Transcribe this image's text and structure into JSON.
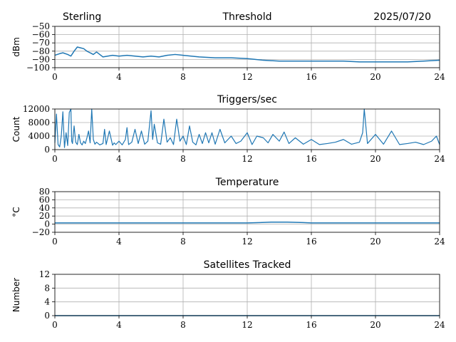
{
  "header": {
    "station": "Sterling",
    "date": "2025/07/20"
  },
  "colors": {
    "line": "#1f77b4"
  },
  "chart_data": [
    {
      "type": "line",
      "title": "Threshold",
      "ylabel": "dBm",
      "xlim": [
        0,
        24
      ],
      "ylim": [
        -100,
        -50
      ],
      "xticks": [
        0,
        4,
        8,
        12,
        16,
        20,
        24
      ],
      "yticks": [
        -100,
        -90,
        -80,
        -70,
        -60,
        -50
      ],
      "ytick_labels": [
        "−100",
        "−90",
        "−80",
        "−70",
        "−60",
        "−50"
      ],
      "grid": true,
      "x": [
        0,
        0.3,
        0.5,
        0.8,
        1.0,
        1.2,
        1.4,
        1.6,
        1.8,
        2.0,
        2.2,
        2.4,
        2.6,
        2.8,
        3.0,
        3.3,
        3.6,
        4.0,
        4.5,
        5.0,
        5.5,
        6.0,
        6.5,
        7.0,
        7.5,
        8.0,
        8.5,
        9.0,
        10.0,
        11.0,
        12.0,
        12.5,
        13.0,
        14.0,
        15.0,
        16.0,
        17.0,
        18.0,
        19.0,
        20.0,
        21.0,
        22.0,
        23.0,
        24.0
      ],
      "y": [
        -85,
        -83,
        -82,
        -84,
        -86,
        -80,
        -75,
        -76,
        -77,
        -80,
        -82,
        -84,
        -81,
        -84,
        -87,
        -86,
        -85,
        -86,
        -85,
        -86,
        -87,
        -86,
        -87,
        -85,
        -84,
        -85,
        -86,
        -87,
        -88,
        -88,
        -89,
        -90,
        -91,
        -92,
        -92,
        -92,
        -92,
        -92,
        -93,
        -93,
        -93,
        -93,
        -92,
        -91
      ]
    },
    {
      "type": "line",
      "title": "Triggers/sec",
      "ylabel": "Count",
      "xlim": [
        0,
        24
      ],
      "ylim": [
        0,
        12000
      ],
      "xticks": [
        0,
        4,
        8,
        12,
        16,
        20,
        24
      ],
      "yticks": [
        0,
        4000,
        8000,
        12000
      ],
      "ytick_labels": [
        "0",
        "4000",
        "8000",
        "12000"
      ],
      "grid": true,
      "x": [
        0,
        0.1,
        0.2,
        0.3,
        0.4,
        0.5,
        0.6,
        0.7,
        0.8,
        0.9,
        1.0,
        1.05,
        1.1,
        1.2,
        1.3,
        1.4,
        1.5,
        1.6,
        1.7,
        1.8,
        1.9,
        2.0,
        2.1,
        2.2,
        2.3,
        2.4,
        2.5,
        2.6,
        2.8,
        3.0,
        3.1,
        3.2,
        3.4,
        3.6,
        3.7,
        3.8,
        4.0,
        4.2,
        4.4,
        4.5,
        4.6,
        4.8,
        5.0,
        5.2,
        5.4,
        5.6,
        5.8,
        6.0,
        6.1,
        6.2,
        6.4,
        6.6,
        6.8,
        7.0,
        7.2,
        7.4,
        7.6,
        7.8,
        8.0,
        8.2,
        8.4,
        8.6,
        8.8,
        9.0,
        9.2,
        9.4,
        9.6,
        9.8,
        10.0,
        10.3,
        10.6,
        11.0,
        11.3,
        11.6,
        12.0,
        12.3,
        12.6,
        13.0,
        13.3,
        13.6,
        14.0,
        14.3,
        14.6,
        15.0,
        15.5,
        16.0,
        16.5,
        17.0,
        17.5,
        18.0,
        18.5,
        19.0,
        19.2,
        19.3,
        19.5,
        20.0,
        20.5,
        21.0,
        21.5,
        22.0,
        22.5,
        23.0,
        23.5,
        23.8,
        24.0
      ],
      "y": [
        2000,
        10500,
        1500,
        800,
        4000,
        11200,
        600,
        5000,
        1200,
        11000,
        12000,
        2500,
        1800,
        7000,
        2200,
        1500,
        4500,
        2000,
        1400,
        2500,
        1800,
        3500,
        5500,
        2000,
        12000,
        3000,
        1600,
        2200,
        1400,
        1800,
        6000,
        1500,
        5500,
        1300,
        2000,
        1500,
        2500,
        1400,
        3000,
        6500,
        1500,
        2200,
        6000,
        1800,
        5500,
        1600,
        2500,
        11500,
        3000,
        7500,
        2000,
        1600,
        9000,
        2200,
        3500,
        1500,
        9000,
        2500,
        4000,
        1500,
        7000,
        2200,
        1400,
        4500,
        1800,
        5000,
        2000,
        5000,
        1600,
        6000,
        2000,
        4000,
        1800,
        2500,
        5000,
        1500,
        4000,
        3500,
        2000,
        4500,
        2500,
        5200,
        1800,
        3500,
        1600,
        3000,
        1500,
        1800,
        2200,
        3000,
        1600,
        2200,
        5000,
        12000,
        1800,
        4500,
        1600,
        5500,
        1500,
        1800,
        2200,
        1500,
        2500,
        4000,
        1500
      ]
    },
    {
      "type": "line",
      "title": "Temperature",
      "ylabel": "°C",
      "xlim": [
        0,
        24
      ],
      "ylim": [
        -20,
        80
      ],
      "xticks": [
        0,
        4,
        8,
        12,
        16,
        20,
        24
      ],
      "yticks": [
        -20,
        0,
        20,
        40,
        60,
        80
      ],
      "ytick_labels": [
        "−20",
        "0",
        "20",
        "40",
        "60",
        "80"
      ],
      "grid": true,
      "x": [
        0,
        4,
        8,
        12,
        12.8,
        13.5,
        14.5,
        15.5,
        16,
        20,
        24
      ],
      "y": [
        3,
        3,
        3,
        3,
        4,
        5,
        5,
        4,
        3,
        3,
        3
      ]
    },
    {
      "type": "line",
      "title": "Satellites Tracked",
      "ylabel": "Number",
      "xlim": [
        0,
        24
      ],
      "ylim": [
        0,
        12
      ],
      "xticks": [
        0,
        4,
        8,
        12,
        16,
        20,
        24
      ],
      "yticks": [
        0,
        4,
        8,
        12
      ],
      "ytick_labels": [
        "0",
        "4",
        "8",
        "12"
      ],
      "grid": true,
      "x": [
        0,
        24
      ],
      "y": [
        0,
        0
      ]
    }
  ]
}
